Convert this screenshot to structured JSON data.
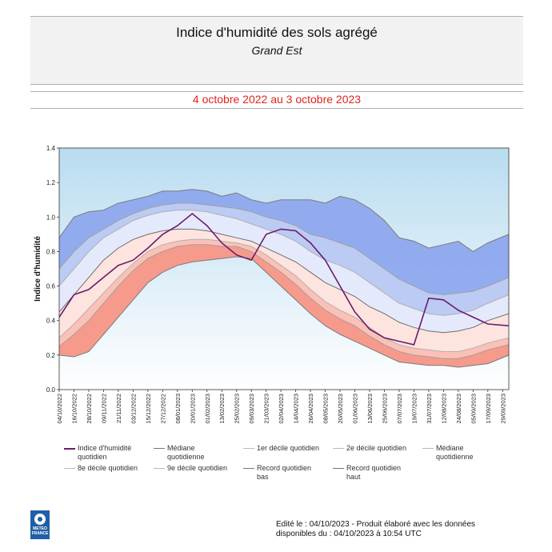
{
  "header": {
    "title": "Indice d'humidité des sols agrégé",
    "subtitle": "Grand Est",
    "period": "4 octobre 2022 au 3 octobre 2023"
  },
  "legend": [
    {
      "label": "Indice d'humidité quotidien",
      "color": "#6a1b6e"
    },
    {
      "label": "Médiane quotidienne",
      "color": "#777777"
    },
    {
      "label": "1er décile quotidien",
      "color": "#bbbbbb"
    },
    {
      "label": "2e décile quotidien",
      "color": "#bbbbbb"
    },
    {
      "label": "Médiane quotidienne",
      "color": "#bbbbbb"
    },
    {
      "label": "8e décile quotidien",
      "color": "#bbbbbb"
    },
    {
      "label": "9e décile quotidien",
      "color": "#bbbbbb"
    },
    {
      "label": "Record quotidien bas",
      "color": "#777777"
    },
    {
      "label": "Record quotidien haut",
      "color": "#777777"
    }
  ],
  "footer": {
    "line1": "Edité le : 04/10/2023 - Produit élaboré avec les données",
    "line2": "disponibles du : 04/10/2023 à 10:54 UTC"
  },
  "logo": {
    "line1": "METEO",
    "line2": "FRANCE"
  },
  "chart_data": {
    "type": "area",
    "ylabel": "Indice d'humidité",
    "xlabel": "",
    "ylim": [
      0,
      1.4
    ],
    "yticks": [
      "0.0",
      "0.2",
      "0.4",
      "0.6",
      "0.8",
      "1.0",
      "1.2",
      "1.4"
    ],
    "xticks": [
      "04/10/2022",
      "16/10/2022",
      "28/10/2022",
      "09/11/2022",
      "21/11/2022",
      "03/12/2022",
      "15/12/2022",
      "27/12/2022",
      "08/01/2023",
      "20/01/2023",
      "01/02/2023",
      "13/02/2023",
      "25/02/2023",
      "09/03/2023",
      "21/03/2023",
      "02/04/2023",
      "14/04/2023",
      "26/04/2023",
      "08/05/2023",
      "20/05/2023",
      "01/06/2023",
      "13/06/2023",
      "25/06/2023",
      "07/07/2023",
      "19/07/2023",
      "31/07/2023",
      "12/08/2023",
      "24/08/2023",
      "05/09/2023",
      "17/09/2023",
      "29/09/2023"
    ],
    "x_days": [
      0,
      12,
      24,
      36,
      48,
      60,
      72,
      84,
      96,
      108,
      120,
      132,
      144,
      156,
      168,
      180,
      192,
      204,
      216,
      228,
      240,
      252,
      264,
      276,
      288,
      300,
      312,
      324,
      336,
      348,
      360
    ],
    "series_x_days": [
      0,
      12,
      24,
      36,
      48,
      60,
      72,
      84,
      96,
      108,
      120,
      132,
      144,
      156,
      168,
      180,
      192,
      204,
      216,
      228,
      240,
      252,
      264,
      276,
      288,
      300,
      312,
      324,
      336,
      348,
      365
    ],
    "record_high": [
      0.88,
      1.0,
      1.03,
      1.04,
      1.08,
      1.1,
      1.12,
      1.15,
      1.15,
      1.16,
      1.15,
      1.12,
      1.14,
      1.1,
      1.08,
      1.1,
      1.1,
      1.1,
      1.08,
      1.12,
      1.1,
      1.05,
      0.98,
      0.88,
      0.86,
      0.82,
      0.84,
      0.86,
      0.8,
      0.85,
      0.9
    ],
    "decile9": [
      0.7,
      0.8,
      0.88,
      0.93,
      0.98,
      1.02,
      1.05,
      1.07,
      1.08,
      1.08,
      1.07,
      1.06,
      1.05,
      1.03,
      1.0,
      0.98,
      0.95,
      0.9,
      0.88,
      0.85,
      0.82,
      0.76,
      0.7,
      0.64,
      0.6,
      0.56,
      0.55,
      0.56,
      0.57,
      0.6,
      0.65
    ],
    "decile8": [
      0.6,
      0.7,
      0.8,
      0.88,
      0.93,
      0.98,
      1.01,
      1.03,
      1.04,
      1.04,
      1.03,
      1.01,
      0.99,
      0.96,
      0.93,
      0.9,
      0.86,
      0.8,
      0.75,
      0.72,
      0.68,
      0.62,
      0.56,
      0.5,
      0.47,
      0.44,
      0.43,
      0.44,
      0.46,
      0.5,
      0.55
    ],
    "median": [
      0.45,
      0.55,
      0.65,
      0.75,
      0.82,
      0.87,
      0.9,
      0.92,
      0.93,
      0.93,
      0.92,
      0.9,
      0.88,
      0.86,
      0.82,
      0.78,
      0.74,
      0.68,
      0.62,
      0.58,
      0.54,
      0.48,
      0.44,
      0.39,
      0.36,
      0.34,
      0.33,
      0.34,
      0.36,
      0.4,
      0.44
    ],
    "decile2": [
      0.3,
      0.38,
      0.47,
      0.56,
      0.65,
      0.73,
      0.8,
      0.84,
      0.86,
      0.87,
      0.87,
      0.86,
      0.85,
      0.83,
      0.78,
      0.72,
      0.66,
      0.58,
      0.51,
      0.46,
      0.42,
      0.36,
      0.3,
      0.26,
      0.24,
      0.23,
      0.22,
      0.22,
      0.24,
      0.27,
      0.3
    ],
    "decile1": [
      0.25,
      0.32,
      0.4,
      0.5,
      0.6,
      0.69,
      0.76,
      0.8,
      0.83,
      0.84,
      0.84,
      0.83,
      0.83,
      0.8,
      0.74,
      0.68,
      0.61,
      0.53,
      0.46,
      0.41,
      0.37,
      0.31,
      0.26,
      0.22,
      0.2,
      0.19,
      0.18,
      0.18,
      0.2,
      0.23,
      0.26
    ],
    "record_low": [
      0.2,
      0.19,
      0.22,
      0.32,
      0.42,
      0.52,
      0.62,
      0.68,
      0.72,
      0.74,
      0.75,
      0.76,
      0.77,
      0.76,
      0.68,
      0.6,
      0.52,
      0.44,
      0.37,
      0.32,
      0.28,
      0.24,
      0.2,
      0.16,
      0.15,
      0.14,
      0.14,
      0.13,
      0.14,
      0.15,
      0.2
    ],
    "daily_index": [
      0.42,
      0.55,
      0.58,
      0.65,
      0.72,
      0.75,
      0.82,
      0.9,
      0.95,
      1.02,
      0.95,
      0.85,
      0.78,
      0.75,
      0.9,
      0.93,
      0.92,
      0.85,
      0.75,
      0.6,
      0.45,
      0.35,
      0.3,
      0.28,
      0.26,
      0.53,
      0.52,
      0.46,
      0.42,
      0.38,
      0.37
    ]
  }
}
